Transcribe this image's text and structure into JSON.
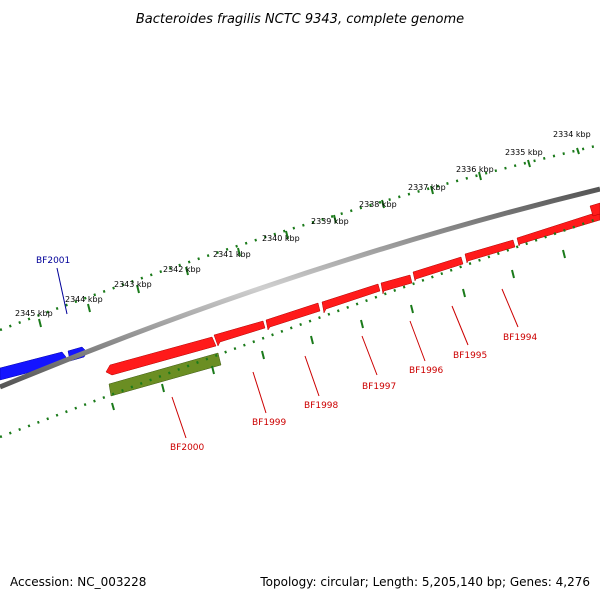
{
  "title": "Bacteroides fragilis NCTC 9343, complete genome",
  "footer": {
    "accession": "Accession: NC_003228",
    "summary": "Topology: circular; Length: 5,205,140 bp; Genes: 4,276"
  },
  "colors": {
    "backbone": "#888888",
    "ticks": "#1a7a1a",
    "forward_gene": "#1414ff",
    "forward_label": "#000099",
    "reverse_gene": "#ff0000",
    "reverse_label": "#cc0000",
    "rna_gene": "#6b8e23"
  },
  "scale_labels": [
    "2334 kbp",
    "2335 kbp",
    "2336 kbp",
    "2337 kbp",
    "2338 kbp",
    "2339 kbp",
    "2340 kbp",
    "2341 kbp",
    "2342 kbp",
    "2343 kbp",
    "2344 kbp",
    "2345 kbp"
  ],
  "genes": [
    {
      "label": "BF2001",
      "strand": "forward"
    },
    {
      "label": "BF2000",
      "strand": "reverse",
      "type": "rna"
    },
    {
      "label": "BF1999",
      "strand": "reverse"
    },
    {
      "label": "BF1998",
      "strand": "reverse"
    },
    {
      "label": "BF1997",
      "strand": "reverse"
    },
    {
      "label": "BF1996",
      "strand": "reverse"
    },
    {
      "label": "BF1995",
      "strand": "reverse"
    },
    {
      "label": "BF1994",
      "strand": "reverse"
    }
  ]
}
